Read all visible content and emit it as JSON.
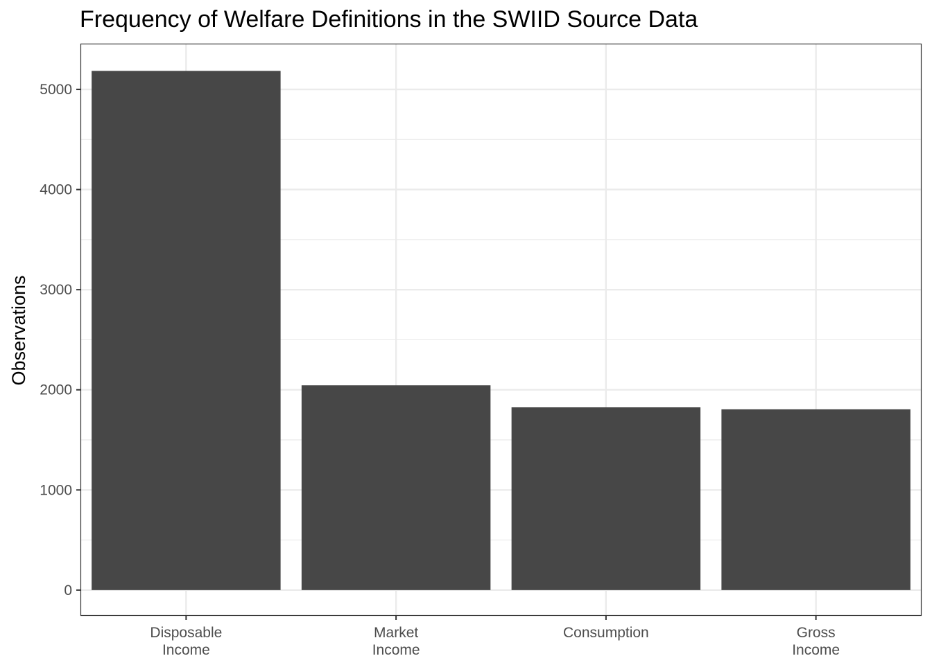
{
  "chart_data": {
    "type": "bar",
    "title": "Frequency of Welfare Definitions in the SWIID Source Data",
    "xlabel": "",
    "ylabel": "Observations",
    "categories": [
      [
        "Disposable",
        "Income"
      ],
      [
        "Market",
        "Income"
      ],
      [
        "Consumption"
      ],
      [
        "Gross",
        "Income"
      ]
    ],
    "values": [
      5185,
      2045,
      1825,
      1805
    ],
    "yticks": [
      0,
      1000,
      2000,
      3000,
      4000,
      5000
    ],
    "ylim": [
      -250,
      5450
    ],
    "grid": true,
    "bar_color": "#474747"
  }
}
